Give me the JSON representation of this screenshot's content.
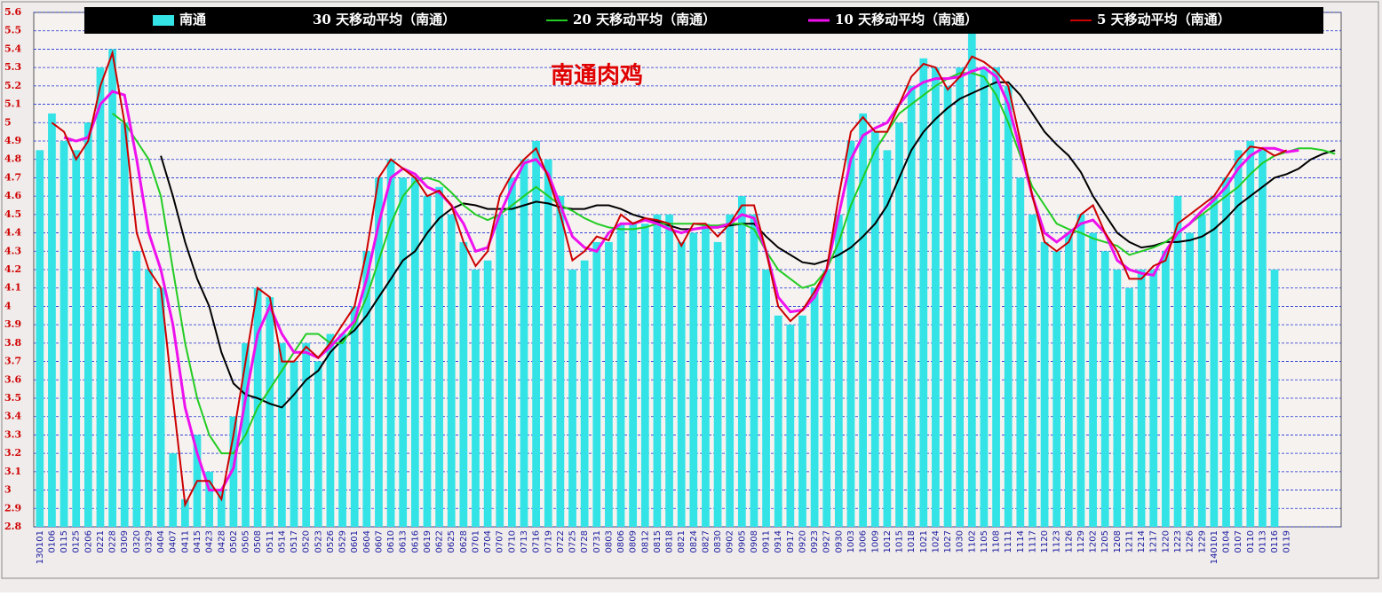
{
  "chart_data": {
    "type": "combo",
    "annotation": "南通肉鸡",
    "categories": [
      "130101",
      "0106",
      "0115",
      "0125",
      "0206",
      "0221",
      "0228",
      "0309",
      "0320",
      "0329",
      "0404",
      "0407",
      "0411",
      "0415",
      "0423",
      "0428",
      "0502",
      "0505",
      "0508",
      "0511",
      "0514",
      "0517",
      "0520",
      "0523",
      "0526",
      "0529",
      "0601",
      "0604",
      "0607",
      "0610",
      "0613",
      "0616",
      "0619",
      "0622",
      "0625",
      "0628",
      "0701",
      "0704",
      "0707",
      "0710",
      "0713",
      "0716",
      "0719",
      "0722",
      "0725",
      "0728",
      "0731",
      "0803",
      "0806",
      "0809",
      "0812",
      "0815",
      "0818",
      "0821",
      "0824",
      "0827",
      "0830",
      "0902",
      "0905",
      "0908",
      "0911",
      "0914",
      "0917",
      "0920",
      "0923",
      "0927",
      "0930",
      "1003",
      "1006",
      "1009",
      "1012",
      "1015",
      "1018",
      "1021",
      "1024",
      "1027",
      "1030",
      "1102",
      "1105",
      "1108",
      "1111",
      "1114",
      "1117",
      "1120",
      "1123",
      "1126",
      "1129",
      "1202",
      "1205",
      "1208",
      "1211",
      "1214",
      "1217",
      "1220",
      "1223",
      "1226",
      "1229",
      "140101",
      "0104",
      "0107",
      "0110",
      "0113",
      "0116",
      "0119",
      null,
      null,
      null,
      null
    ],
    "series": [
      {
        "name": "南通",
        "type": "bar",
        "color": "#33e3e6",
        "values": [
          4.85,
          5.05,
          4.9,
          4.85,
          5.0,
          5.3,
          5.4,
          5.0,
          4.3,
          4.2,
          4.1,
          3.2,
          2.95,
          3.3,
          3.1,
          3.0,
          3.4,
          3.8,
          4.1,
          4.05,
          3.8,
          3.7,
          3.8,
          3.7,
          3.85,
          3.85,
          4.0,
          4.3,
          4.7,
          4.8,
          4.7,
          4.7,
          4.6,
          4.65,
          4.5,
          4.35,
          4.2,
          4.25,
          4.5,
          4.7,
          4.8,
          4.9,
          4.8,
          4.6,
          4.2,
          4.25,
          4.35,
          4.35,
          4.45,
          4.45,
          4.45,
          4.5,
          4.5,
          4.35,
          4.4,
          4.45,
          4.35,
          4.5,
          4.6,
          4.5,
          4.2,
          3.95,
          3.9,
          3.95,
          4.1,
          4.2,
          4.5,
          4.9,
          5.05,
          4.95,
          4.85,
          5.0,
          5.2,
          5.35,
          5.3,
          5.2,
          5.3,
          5.5,
          5.3,
          5.3,
          5.2,
          4.7,
          4.5,
          4.35,
          4.3,
          4.4,
          4.5,
          4.4,
          4.3,
          4.2,
          4.1,
          4.2,
          4.2,
          4.3,
          4.6,
          4.4,
          4.5,
          4.6,
          4.7,
          4.85,
          4.9,
          4.85,
          4.2,
          null,
          null,
          null,
          null,
          null
        ]
      },
      {
        "name": "30 天移动平均（南通）",
        "type": "line",
        "color": "#000000",
        "values": [
          null,
          null,
          null,
          null,
          null,
          null,
          null,
          null,
          null,
          null,
          4.82,
          4.6,
          4.35,
          4.15,
          4.0,
          3.75,
          3.58,
          3.52,
          3.5,
          3.47,
          3.45,
          3.52,
          3.6,
          3.65,
          3.75,
          3.82,
          3.87,
          3.95,
          4.05,
          4.15,
          4.25,
          4.3,
          4.4,
          4.48,
          4.53,
          4.56,
          4.55,
          4.53,
          4.53,
          4.53,
          4.55,
          4.57,
          4.56,
          4.54,
          4.53,
          4.53,
          4.55,
          4.55,
          4.53,
          4.5,
          4.48,
          4.46,
          4.44,
          4.42,
          4.42,
          4.43,
          4.43,
          4.44,
          4.45,
          4.45,
          4.38,
          4.32,
          4.28,
          4.24,
          4.23,
          4.25,
          4.28,
          4.32,
          4.38,
          4.45,
          4.55,
          4.7,
          4.85,
          4.95,
          5.02,
          5.08,
          5.13,
          5.16,
          5.19,
          5.22,
          5.22,
          5.15,
          5.05,
          4.95,
          4.88,
          4.82,
          4.73,
          4.6,
          4.5,
          4.4,
          4.35,
          4.32,
          4.33,
          4.35,
          4.35,
          4.36,
          4.38,
          4.42,
          4.48,
          4.55,
          4.6,
          4.65,
          4.7,
          4.72,
          4.75,
          4.8,
          4.83,
          4.85
        ]
      },
      {
        "name": "20 天移动平均（南通）",
        "type": "line",
        "color": "#22cc22",
        "values": [
          null,
          null,
          null,
          null,
          null,
          null,
          5.05,
          5.0,
          4.9,
          4.8,
          4.6,
          4.2,
          3.8,
          3.5,
          3.3,
          3.2,
          3.2,
          3.3,
          3.45,
          3.55,
          3.65,
          3.75,
          3.85,
          3.85,
          3.8,
          3.8,
          3.9,
          4.05,
          4.25,
          4.45,
          4.6,
          4.68,
          4.7,
          4.68,
          4.62,
          4.55,
          4.5,
          4.47,
          4.5,
          4.55,
          4.6,
          4.65,
          4.6,
          4.55,
          4.52,
          4.48,
          4.45,
          4.43,
          4.42,
          4.42,
          4.43,
          4.45,
          4.45,
          4.45,
          4.45,
          4.44,
          4.44,
          4.45,
          4.45,
          4.42,
          4.3,
          4.2,
          4.15,
          4.1,
          4.12,
          4.2,
          4.35,
          4.55,
          4.7,
          4.85,
          4.95,
          5.05,
          5.1,
          5.15,
          5.2,
          5.24,
          5.27,
          5.27,
          5.25,
          5.15,
          5.0,
          4.82,
          4.65,
          4.55,
          4.45,
          4.42,
          4.4,
          4.37,
          4.35,
          4.33,
          4.28,
          4.3,
          4.32,
          4.35,
          4.4,
          4.45,
          4.5,
          4.55,
          4.6,
          4.65,
          4.72,
          4.78,
          4.82,
          4.84,
          4.86,
          4.86,
          4.85,
          4.83
        ]
      },
      {
        "name": "10 天移动平均（南通）",
        "type": "line",
        "color": "#ee11ee",
        "values": [
          null,
          null,
          4.92,
          4.9,
          4.92,
          5.1,
          5.17,
          5.15,
          4.8,
          4.4,
          4.2,
          3.9,
          3.45,
          3.2,
          3.0,
          3.0,
          3.12,
          3.5,
          3.85,
          4.0,
          3.85,
          3.75,
          3.75,
          3.72,
          3.78,
          3.85,
          3.92,
          4.15,
          4.45,
          4.7,
          4.75,
          4.72,
          4.65,
          4.62,
          4.55,
          4.45,
          4.3,
          4.32,
          4.5,
          4.65,
          4.78,
          4.8,
          4.72,
          4.55,
          4.38,
          4.32,
          4.3,
          4.4,
          4.45,
          4.45,
          4.47,
          4.45,
          4.42,
          4.4,
          4.42,
          4.43,
          4.43,
          4.45,
          4.5,
          4.48,
          4.3,
          4.05,
          3.97,
          3.98,
          4.05,
          4.2,
          4.5,
          4.8,
          4.93,
          4.97,
          5.0,
          5.1,
          5.18,
          5.22,
          5.24,
          5.24,
          5.25,
          5.28,
          5.3,
          5.25,
          5.1,
          4.85,
          4.6,
          4.4,
          4.35,
          4.4,
          4.45,
          4.47,
          4.4,
          4.25,
          4.2,
          4.18,
          4.17,
          4.3,
          4.4,
          4.45,
          4.52,
          4.58,
          4.65,
          4.75,
          4.82,
          4.86,
          4.86,
          4.84,
          4.85,
          null,
          null,
          null
        ]
      },
      {
        "name": "5 天移动平均（南通）",
        "type": "line",
        "color": "#cc0000",
        "values": [
          null,
          5.0,
          4.95,
          4.8,
          4.9,
          5.2,
          5.38,
          5.0,
          4.4,
          4.2,
          4.1,
          3.5,
          2.92,
          3.05,
          3.05,
          2.95,
          3.3,
          3.7,
          4.1,
          4.05,
          3.7,
          3.7,
          3.78,
          3.72,
          3.8,
          3.9,
          4.0,
          4.3,
          4.7,
          4.8,
          4.75,
          4.7,
          4.6,
          4.63,
          4.55,
          4.35,
          4.22,
          4.3,
          4.6,
          4.72,
          4.8,
          4.86,
          4.7,
          4.5,
          4.25,
          4.3,
          4.38,
          4.36,
          4.5,
          4.45,
          4.48,
          4.47,
          4.45,
          4.33,
          4.45,
          4.45,
          4.38,
          4.45,
          4.55,
          4.55,
          4.3,
          4.0,
          3.92,
          3.98,
          4.08,
          4.2,
          4.6,
          4.95,
          5.03,
          4.95,
          4.95,
          5.1,
          5.25,
          5.32,
          5.3,
          5.18,
          5.25,
          5.36,
          5.33,
          5.28,
          5.2,
          4.9,
          4.6,
          4.35,
          4.3,
          4.35,
          4.5,
          4.55,
          4.4,
          4.3,
          4.15,
          4.15,
          4.22,
          4.25,
          4.45,
          4.5,
          4.55,
          4.6,
          4.7,
          4.8,
          4.87,
          4.86,
          4.82,
          4.85,
          null,
          null,
          null,
          null
        ]
      }
    ],
    "ylim": [
      2.8,
      5.6
    ],
    "yticks": [
      2.8,
      2.9,
      3,
      3.1,
      3.2,
      3.3,
      3.4,
      3.5,
      3.6,
      3.7,
      3.8,
      3.9,
      4,
      4.1,
      4.2,
      4.3,
      4.4,
      4.5,
      4.6,
      4.7,
      4.8,
      4.9,
      5,
      5.1,
      5.2,
      5.3,
      5.4,
      5.5,
      5.6
    ],
    "grid": true,
    "legend": "top"
  }
}
